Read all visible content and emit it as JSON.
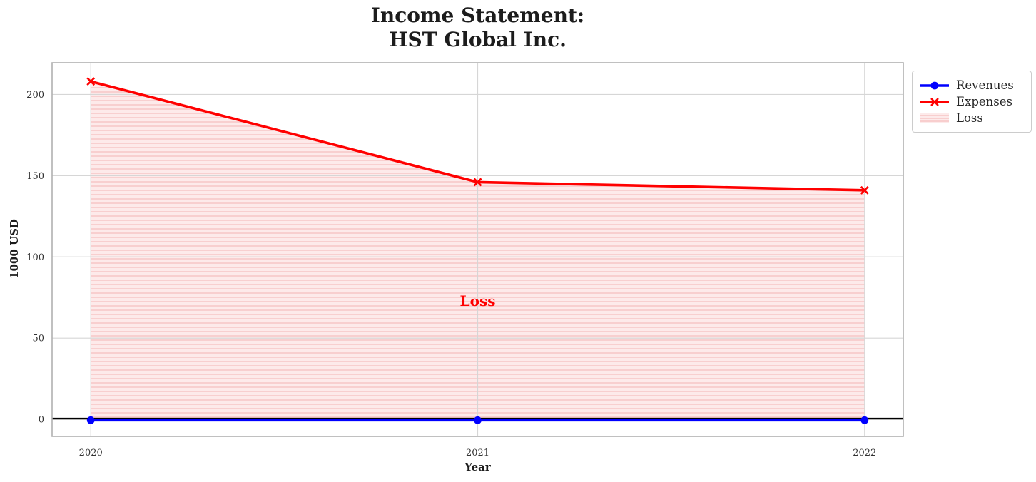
{
  "title": {
    "line1": "Income Statement:",
    "line2": "HST Global Inc."
  },
  "chart_data": {
    "type": "line",
    "x": [
      2020,
      2021,
      2022
    ],
    "series": [
      {
        "name": "Revenues",
        "values": [
          0,
          0,
          0
        ],
        "color": "#0000ff",
        "marker": "circle"
      },
      {
        "name": "Expenses",
        "values": [
          208,
          146,
          141
        ],
        "color": "#ff0000",
        "marker": "x"
      }
    ],
    "loss_area": {
      "label": "Loss",
      "between": [
        "Revenues",
        "Expenses"
      ],
      "fill": "#fdeaea",
      "hatch": "horizontal-lines",
      "hatch_color": "#f7c4c4"
    },
    "annotation": {
      "text": "Loss",
      "x": 2021,
      "y": 73,
      "color": "#ff0000"
    },
    "xlabel": "Year",
    "ylabel": "1000 USD",
    "xticks": [
      2020,
      2021,
      2022
    ],
    "yticks": [
      0,
      50,
      100,
      150,
      200
    ],
    "xlim": [
      2019.9,
      2022.1
    ],
    "ylim": [
      -10.5,
      219.5
    ],
    "grid": true,
    "zero_line": 0,
    "legend": {
      "position": "upper-right-outside",
      "entries": [
        "Revenues",
        "Expenses",
        "Loss"
      ]
    }
  },
  "colors": {
    "background": "#ffffff",
    "grid": "#d6d6d6",
    "spine": "#b0b0b0",
    "tick_text": "#333333",
    "title_text": "#1c1c1c",
    "zero_line": "#000000"
  }
}
